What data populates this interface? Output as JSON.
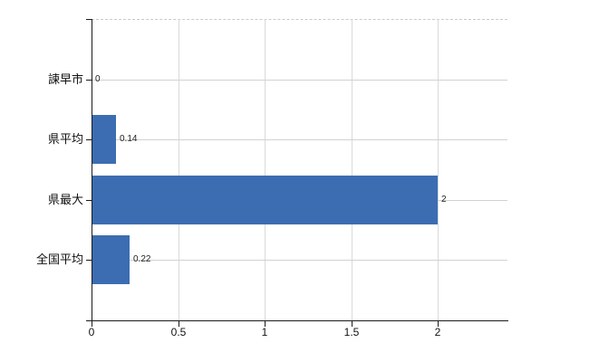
{
  "chart_data": {
    "type": "bar",
    "orientation": "horizontal",
    "title": "",
    "xlabel": "",
    "ylabel": "",
    "categories": [
      "諫早市",
      "県平均",
      "県最大",
      "全国平均"
    ],
    "values": [
      0,
      0.14,
      2,
      0.22
    ],
    "value_labels": [
      "0",
      "0.14",
      "2",
      "0.22"
    ],
    "x_tick_values": [
      0,
      0.5,
      1,
      1.5,
      2
    ],
    "x_tick_labels": [
      "0",
      "0.5",
      "1",
      "1.5",
      "2"
    ],
    "xlim": [
      0,
      2.4
    ],
    "grid": true,
    "legend": false,
    "colors": {
      "bar": "#3c6db2",
      "gridline_vertical": "#dadada",
      "gridline_horizontal": "#ccd4cc",
      "top_border_dashed": "#c9c9c9",
      "axis": "#1a1a1a",
      "text": "#111111",
      "value_text": "#222222",
      "background": "#ffffff"
    }
  }
}
